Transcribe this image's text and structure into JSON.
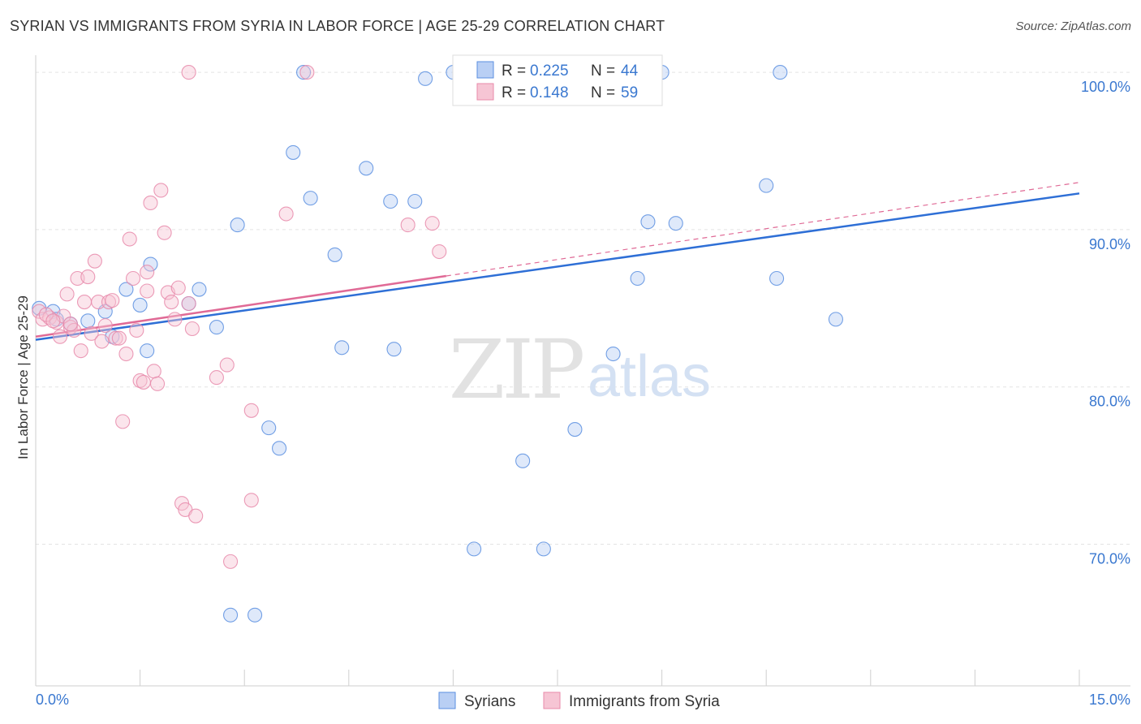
{
  "chart_data": {
    "type": "scatter",
    "title": "SYRIAN VS IMMIGRANTS FROM SYRIA IN LABOR FORCE | AGE 25-29 CORRELATION CHART",
    "source": "Source: ZipAtlas.com",
    "ylabel": "In Labor Force | Age 25-29",
    "xlim": [
      0,
      15
    ],
    "ylim": [
      61,
      101.5
    ],
    "x_tick_labels": [
      "0.0%",
      "15.0%"
    ],
    "y_tick_labels": [
      {
        "value": 100,
        "label": "100.0%"
      },
      {
        "value": 90,
        "label": "90.0%"
      },
      {
        "value": 80,
        "label": "80.0%"
      },
      {
        "value": 70,
        "label": "70.0%"
      }
    ],
    "watermark": {
      "zip": "ZIP",
      "atlas": "atlas"
    },
    "legend_position": "top-center",
    "series": [
      {
        "name": "Syrians",
        "color": "#5b8fe0",
        "fill": "#b9cff4",
        "line_color": "#2e6fd6",
        "r": "0.225",
        "n": "44",
        "trend": {
          "x0": 0,
          "y0": 83.0,
          "x1": 15,
          "y1": 92.3,
          "dashed_from": null
        },
        "points": [
          [
            0.05,
            85.0
          ],
          [
            0.25,
            84.8
          ],
          [
            0.5,
            84.0
          ],
          [
            0.75,
            84.2
          ],
          [
            1.0,
            84.8
          ],
          [
            1.3,
            86.2
          ],
          [
            1.1,
            83.2
          ],
          [
            1.65,
            87.8
          ],
          [
            1.5,
            85.2
          ],
          [
            2.2,
            85.3
          ],
          [
            1.6,
            82.3
          ],
          [
            2.35,
            86.2
          ],
          [
            2.6,
            83.8
          ],
          [
            2.9,
            90.3
          ],
          [
            3.7,
            94.9
          ],
          [
            3.35,
            77.4
          ],
          [
            3.5,
            76.1
          ],
          [
            3.95,
            92.0
          ],
          [
            4.3,
            88.4
          ],
          [
            4.4,
            82.5
          ],
          [
            4.75,
            93.9
          ],
          [
            5.1,
            91.8
          ],
          [
            5.15,
            82.4
          ],
          [
            5.45,
            91.8
          ],
          [
            5.6,
            99.6
          ],
          [
            6.0,
            100.0
          ],
          [
            6.8,
            100.0
          ],
          [
            6.3,
            69.7
          ],
          [
            7.0,
            75.3
          ],
          [
            7.3,
            69.7
          ],
          [
            7.75,
            77.3
          ],
          [
            8.3,
            82.1
          ],
          [
            8.65,
            86.9
          ],
          [
            8.8,
            90.5
          ],
          [
            9.2,
            90.4
          ],
          [
            9.0,
            100.0
          ],
          [
            10.7,
            100.0
          ],
          [
            10.5,
            92.8
          ],
          [
            10.65,
            86.9
          ],
          [
            11.5,
            84.3
          ],
          [
            3.85,
            100.0
          ],
          [
            2.8,
            65.5
          ],
          [
            3.15,
            65.5
          ],
          [
            0.3,
            84.3
          ]
        ]
      },
      {
        "name": "Immigrants from Syria",
        "color": "#e88aaa",
        "fill": "#f6c5d4",
        "line_color": "#e06a96",
        "r": "0.148",
        "n": "59",
        "trend": {
          "x0": 0,
          "y0": 83.2,
          "x1": 15,
          "y1": 93.0,
          "dashed_from": 5.9
        },
        "points": [
          [
            0.05,
            84.8
          ],
          [
            0.1,
            84.3
          ],
          [
            0.2,
            84.4
          ],
          [
            0.3,
            84.1
          ],
          [
            0.35,
            83.2
          ],
          [
            0.4,
            84.5
          ],
          [
            0.45,
            85.9
          ],
          [
            0.5,
            83.8
          ],
          [
            0.55,
            83.6
          ],
          [
            0.6,
            86.9
          ],
          [
            0.65,
            82.3
          ],
          [
            0.7,
            85.4
          ],
          [
            0.75,
            87.0
          ],
          [
            0.8,
            83.4
          ],
          [
            0.85,
            88.0
          ],
          [
            0.9,
            85.4
          ],
          [
            0.95,
            82.9
          ],
          [
            1.0,
            83.9
          ],
          [
            1.05,
            85.4
          ],
          [
            1.1,
            85.5
          ],
          [
            1.15,
            83.1
          ],
          [
            1.2,
            83.1
          ],
          [
            1.25,
            77.8
          ],
          [
            1.3,
            82.1
          ],
          [
            1.35,
            89.4
          ],
          [
            1.4,
            86.9
          ],
          [
            1.45,
            83.6
          ],
          [
            1.5,
            80.4
          ],
          [
            1.55,
            80.3
          ],
          [
            1.6,
            87.3
          ],
          [
            1.65,
            91.7
          ],
          [
            1.7,
            81.0
          ],
          [
            1.75,
            80.2
          ],
          [
            1.8,
            92.5
          ],
          [
            1.85,
            89.8
          ],
          [
            1.9,
            86.0
          ],
          [
            1.95,
            85.4
          ],
          [
            2.0,
            84.3
          ],
          [
            2.05,
            86.3
          ],
          [
            2.1,
            72.6
          ],
          [
            2.15,
            72.2
          ],
          [
            2.2,
            100.0
          ],
          [
            2.3,
            71.8
          ],
          [
            2.2,
            85.3
          ],
          [
            2.6,
            80.6
          ],
          [
            2.75,
            81.4
          ],
          [
            2.8,
            68.9
          ],
          [
            3.1,
            78.5
          ],
          [
            3.1,
            72.8
          ],
          [
            3.6,
            91.0
          ],
          [
            3.9,
            100.0
          ],
          [
            5.35,
            90.3
          ],
          [
            5.7,
            90.4
          ],
          [
            5.8,
            88.6
          ],
          [
            0.15,
            84.6
          ],
          [
            0.25,
            84.2
          ],
          [
            1.6,
            86.1
          ],
          [
            0.5,
            84.0
          ],
          [
            2.25,
            83.7
          ]
        ]
      }
    ]
  }
}
